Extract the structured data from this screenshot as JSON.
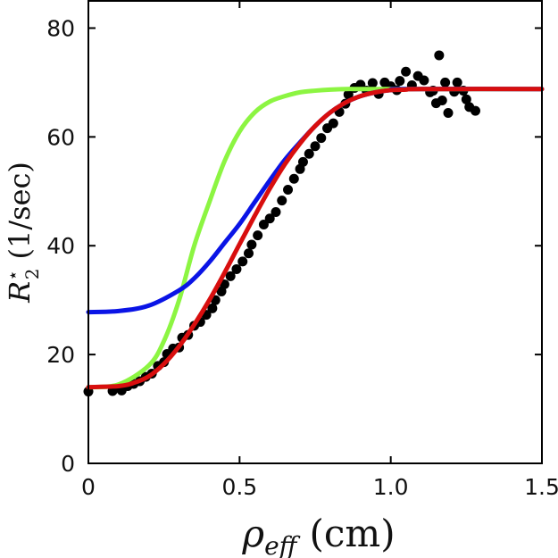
{
  "chart_data": {
    "type": "line",
    "title": "",
    "xlabel": {
      "symbol": "ρ",
      "subscript": "eff",
      "unit": "(cm)"
    },
    "ylabel": {
      "symbol": "R",
      "superscript": "⋆",
      "subscript": "2",
      "unit": "(1/sec)"
    },
    "xlim": [
      0,
      1.5
    ],
    "ylim": [
      0,
      85
    ],
    "x_ticks": [
      0,
      0.5,
      1.0,
      1.5
    ],
    "x_tick_labels": [
      "0",
      "0.5",
      "1.0",
      "1.5"
    ],
    "y_ticks": [
      0,
      20,
      40,
      60,
      80
    ],
    "y_tick_labels": [
      "0",
      "20",
      "40",
      "60",
      "80"
    ],
    "grid": false,
    "legend": null,
    "series": [
      {
        "name": "measured",
        "kind": "scatter",
        "color": "#000000",
        "points": [
          [
            0.0,
            13.2
          ],
          [
            0.08,
            13.3
          ],
          [
            0.1,
            13.9
          ],
          [
            0.11,
            13.4
          ],
          [
            0.13,
            14.2
          ],
          [
            0.15,
            14.6
          ],
          [
            0.17,
            15.1
          ],
          [
            0.19,
            15.9
          ],
          [
            0.21,
            16.5
          ],
          [
            0.23,
            17.9
          ],
          [
            0.25,
            18.6
          ],
          [
            0.26,
            20.1
          ],
          [
            0.28,
            21.1
          ],
          [
            0.3,
            21.3
          ],
          [
            0.31,
            23.1
          ],
          [
            0.33,
            23.6
          ],
          [
            0.35,
            25.3
          ],
          [
            0.37,
            26.0
          ],
          [
            0.39,
            27.3
          ],
          [
            0.41,
            28.5
          ],
          [
            0.42,
            30.0
          ],
          [
            0.44,
            31.6
          ],
          [
            0.45,
            32.9
          ],
          [
            0.47,
            34.4
          ],
          [
            0.49,
            35.7
          ],
          [
            0.51,
            37.1
          ],
          [
            0.53,
            38.6
          ],
          [
            0.54,
            40.2
          ],
          [
            0.56,
            41.9
          ],
          [
            0.58,
            43.9
          ],
          [
            0.6,
            45.0
          ],
          [
            0.62,
            46.2
          ],
          [
            0.64,
            48.3
          ],
          [
            0.66,
            50.3
          ],
          [
            0.68,
            52.3
          ],
          [
            0.7,
            54.1
          ],
          [
            0.71,
            55.4
          ],
          [
            0.73,
            56.9
          ],
          [
            0.75,
            58.3
          ],
          [
            0.77,
            59.8
          ],
          [
            0.79,
            61.6
          ],
          [
            0.81,
            62.5
          ],
          [
            0.83,
            64.6
          ],
          [
            0.85,
            66.1
          ],
          [
            0.86,
            67.8
          ],
          [
            0.88,
            69.0
          ],
          [
            0.9,
            69.6
          ],
          [
            0.92,
            68.5
          ],
          [
            0.94,
            69.9
          ],
          [
            0.96,
            67.9
          ],
          [
            0.98,
            70.0
          ],
          [
            1.0,
            69.3
          ],
          [
            1.02,
            68.6
          ],
          [
            1.03,
            70.3
          ],
          [
            1.05,
            72.0
          ],
          [
            1.07,
            69.5
          ],
          [
            1.09,
            71.2
          ],
          [
            1.11,
            70.4
          ],
          [
            1.13,
            68.2
          ],
          [
            1.14,
            68.5
          ],
          [
            1.15,
            66.2
          ],
          [
            1.16,
            75.0
          ],
          [
            1.17,
            66.7
          ],
          [
            1.18,
            70.0
          ],
          [
            1.19,
            64.4
          ],
          [
            1.21,
            68.3
          ],
          [
            1.22,
            70.0
          ],
          [
            1.24,
            68.5
          ],
          [
            1.25,
            66.9
          ],
          [
            1.26,
            65.5
          ],
          [
            1.28,
            64.8
          ]
        ]
      },
      {
        "name": "green-fit",
        "kind": "line",
        "color": "#8cf542",
        "x": [
          0,
          0.1,
          0.2,
          0.25,
          0.3,
          0.35,
          0.4,
          0.45,
          0.5,
          0.55,
          0.6,
          0.65,
          0.7,
          0.75,
          0.8,
          0.85,
          0.9,
          1.0,
          1.5
        ],
        "y": [
          14.0,
          14.5,
          18.0,
          22.5,
          30.0,
          40.0,
          48.0,
          55.5,
          61.0,
          64.5,
          66.5,
          67.5,
          68.2,
          68.5,
          68.7,
          68.8,
          68.8,
          68.8,
          68.8
        ]
      },
      {
        "name": "blue-fit",
        "kind": "line",
        "color": "#0a14e6",
        "x": [
          0,
          0.1,
          0.2,
          0.3,
          0.35,
          0.4,
          0.45,
          0.5,
          0.55,
          0.6,
          0.65,
          0.7,
          0.75,
          0.8,
          0.85,
          0.9,
          0.95,
          1.0,
          1.05,
          1.5
        ],
        "y": [
          27.8,
          28.0,
          29.0,
          31.8,
          34.0,
          37.0,
          40.5,
          44.0,
          48.0,
          52.0,
          55.8,
          59.0,
          62.0,
          64.5,
          66.3,
          67.5,
          68.2,
          68.6,
          68.8,
          68.8
        ]
      },
      {
        "name": "red-fit",
        "kind": "line",
        "color": "#d80e0e",
        "x": [
          0,
          0.1,
          0.15,
          0.2,
          0.25,
          0.3,
          0.35,
          0.4,
          0.45,
          0.5,
          0.55,
          0.6,
          0.65,
          0.7,
          0.75,
          0.8,
          0.85,
          0.9,
          0.95,
          1.0,
          1.05,
          1.1,
          1.5
        ],
        "y": [
          14.0,
          14.2,
          14.8,
          16.0,
          18.3,
          21.5,
          25.5,
          30.0,
          35.0,
          40.3,
          45.5,
          50.5,
          55.0,
          58.8,
          62.0,
          64.5,
          66.3,
          67.5,
          68.2,
          68.6,
          68.7,
          68.8,
          68.8
        ]
      }
    ]
  }
}
